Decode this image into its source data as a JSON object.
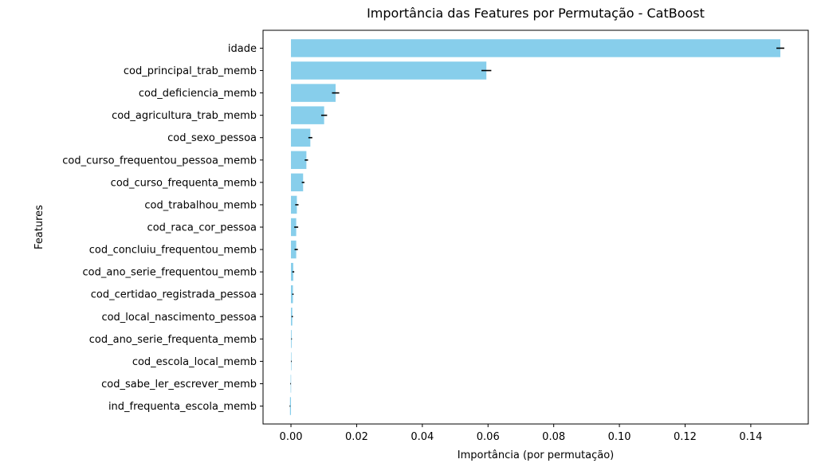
{
  "chart_data": {
    "type": "bar",
    "orientation": "horizontal",
    "title": "Importância das Features por Permutação - CatBoost",
    "xlabel": "Importância (por permutação)",
    "ylabel": "Features",
    "xlim": [
      -0.0085,
      0.1575
    ],
    "xticks": [
      0.0,
      0.02,
      0.04,
      0.06,
      0.08,
      0.1,
      0.12,
      0.14
    ],
    "xtick_labels": [
      "0.00",
      "0.02",
      "0.04",
      "0.06",
      "0.08",
      "0.10",
      "0.12",
      "0.14"
    ],
    "grid": false,
    "bar_color": "#87CEEB",
    "error_color": "#000000",
    "categories": [
      "idade",
      "cod_principal_trab_memb",
      "cod_deficiencia_memb",
      "cod_agricultura_trab_memb",
      "cod_sexo_pessoa",
      "cod_curso_frequentou_pessoa_memb",
      "cod_curso_frequenta_memb",
      "cod_trabalhou_memb",
      "cod_raca_cor_pessoa",
      "cod_concluiu_frequentou_memb",
      "cod_ano_serie_frequentou_memb",
      "cod_certidao_registrada_pessoa",
      "cod_local_nascimento_pessoa",
      "cod_ano_serie_frequenta_memb",
      "cod_escola_local_memb",
      "cod_sabe_ler_escrever_memb",
      "ind_frequenta_escola_memb"
    ],
    "values": [
      0.149,
      0.0595,
      0.0136,
      0.0101,
      0.0059,
      0.0047,
      0.0037,
      0.0018,
      0.0016,
      0.0016,
      0.0007,
      0.0006,
      0.0004,
      0.0002,
      0.0001,
      -0.0001,
      -0.0003
    ],
    "errors": [
      0.0012,
      0.0015,
      0.0011,
      0.0009,
      0.0006,
      0.0005,
      0.0004,
      0.0005,
      0.0006,
      0.0005,
      0.0003,
      0.0002,
      0.0002,
      0.0001,
      0.0001,
      0.0001,
      0.0001
    ]
  }
}
